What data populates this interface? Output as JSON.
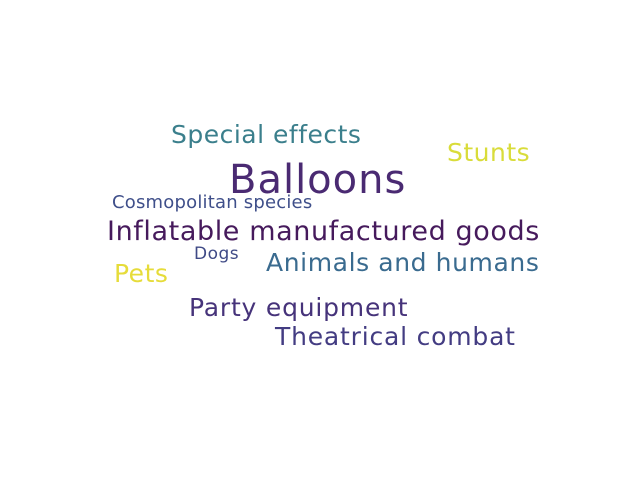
{
  "word_cloud": {
    "words": [
      {
        "text": "Balloons",
        "color": "#4a2a72"
      },
      {
        "text": "Special effects",
        "color": "#3b7f8c"
      },
      {
        "text": "Stunts",
        "color": "#d9dc3a"
      },
      {
        "text": "Cosmopolitan species",
        "color": "#3f4f8a"
      },
      {
        "text": "Inflatable manufactured goods",
        "color": "#461a5c"
      },
      {
        "text": "Dogs",
        "color": "#3f4a86"
      },
      {
        "text": "Animals and humans",
        "color": "#3a6b8f"
      },
      {
        "text": "Pets",
        "color": "#e6dc3a"
      },
      {
        "text": "Party equipment",
        "color": "#46337a"
      },
      {
        "text": "Theatrical combat",
        "color": "#433c82"
      }
    ]
  }
}
